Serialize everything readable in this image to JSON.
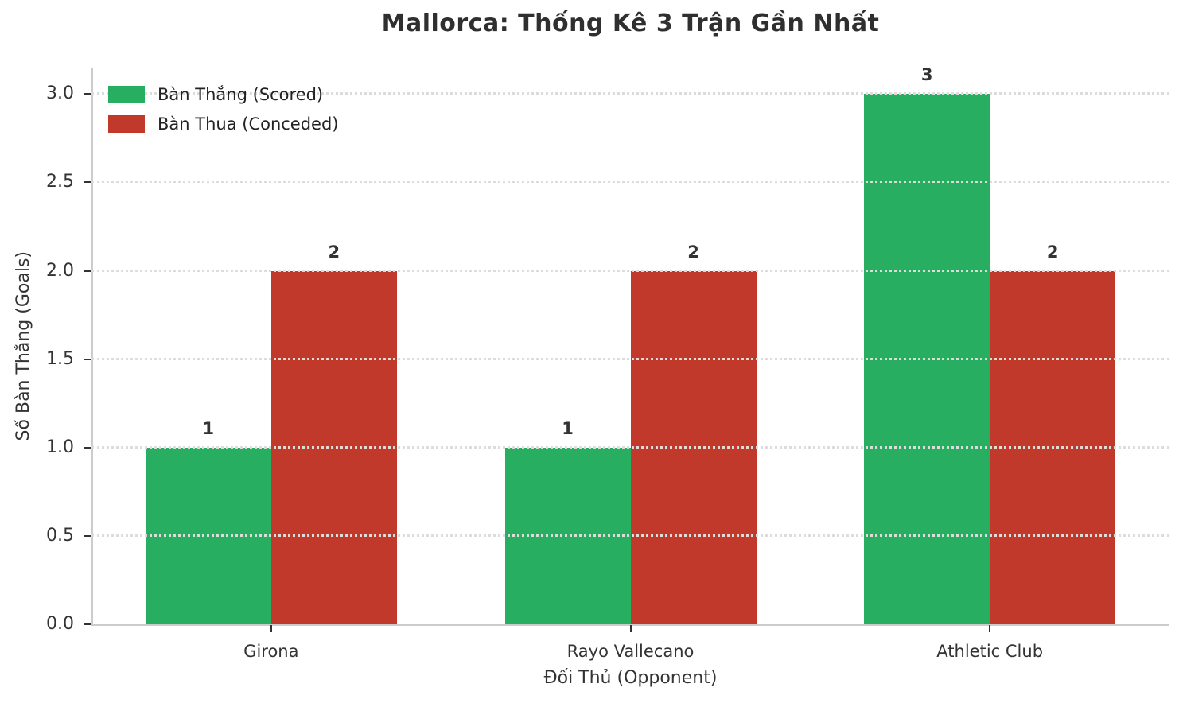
{
  "chart_data": {
    "type": "bar",
    "title": "Mallorca: Thống Kê 3 Trận Gần Nhất",
    "xlabel": "Đối Thủ (Opponent)",
    "ylabel": "Số Bàn Thắng (Goals)",
    "categories": [
      "Girona",
      "Rayo Vallecano",
      "Athletic Club"
    ],
    "series": [
      {
        "name": "Bàn Thắng (Scored)",
        "color": "#27ae60",
        "values": [
          1,
          1,
          3
        ]
      },
      {
        "name": "Bàn Thua (Conceded)",
        "color": "#c0392b",
        "values": [
          2,
          2,
          2
        ]
      }
    ],
    "ylim": [
      0,
      3.15
    ],
    "yticks": [
      0,
      0.5,
      1,
      1.5,
      2,
      2.5,
      3
    ],
    "grid": {
      "axis": "y",
      "style": "dotted",
      "color": "#dcdcdc"
    },
    "legend": {
      "position": "upper-left",
      "frame": false
    },
    "value_labels_shown": true,
    "colors": {
      "background": "#ffffff",
      "spine": "#cccccc",
      "tick": "#333333",
      "text": "#333333"
    }
  }
}
